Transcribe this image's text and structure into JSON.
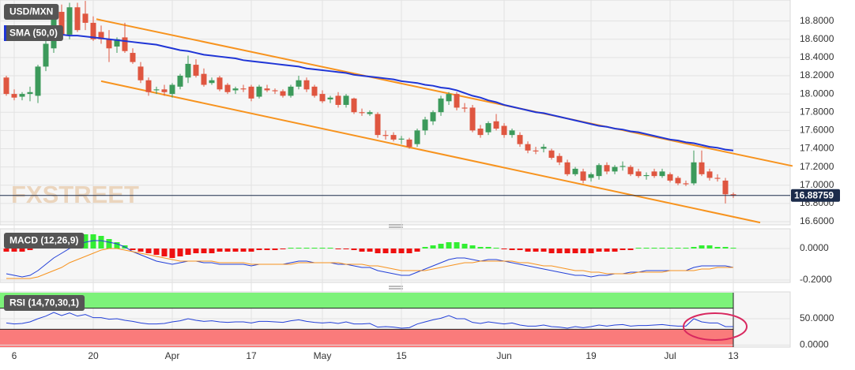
{
  "chart_data": [
    {
      "type": "candlestick",
      "title": "USD/MXN",
      "categories": [
        null,
        "6",
        null,
        null,
        null,
        null,
        null,
        null,
        null,
        null,
        null,
        "20",
        null,
        null,
        null,
        null,
        null,
        null,
        null,
        null,
        null,
        "Apr",
        null,
        null,
        null,
        null,
        null,
        null,
        null,
        null,
        null,
        "17",
        null,
        null,
        null,
        null,
        null,
        null,
        null,
        null,
        "May",
        null,
        null,
        null,
        null,
        null,
        null,
        null,
        null,
        null,
        "15",
        null,
        null,
        null,
        null,
        null,
        null,
        null,
        null,
        null,
        null,
        null,
        null,
        "Jun",
        null,
        null,
        null,
        null,
        null,
        null,
        null,
        null,
        null,
        null,
        "19",
        null,
        null,
        null,
        null,
        null,
        null,
        null,
        null,
        null,
        "Jul",
        null,
        null,
        null,
        null,
        null,
        null,
        null,
        "13"
      ],
      "ohlc": [
        [
          18.18,
          18.2,
          17.98,
          18.0
        ],
        [
          18.0,
          18.05,
          17.93,
          17.96
        ],
        [
          17.97,
          18.02,
          17.93,
          18.0
        ],
        [
          18.0,
          18.08,
          17.92,
          18.02
        ],
        [
          17.98,
          18.32,
          17.9,
          18.3
        ],
        [
          18.3,
          18.6,
          18.25,
          18.55
        ],
        [
          18.5,
          18.95,
          18.45,
          18.9
        ],
        [
          18.9,
          18.98,
          18.6,
          18.65
        ],
        [
          18.65,
          19.0,
          18.6,
          18.95
        ],
        [
          18.95,
          19.0,
          18.68,
          18.7
        ],
        [
          18.88,
          19.02,
          18.7,
          18.78
        ],
        [
          18.78,
          18.85,
          18.58,
          18.6
        ],
        [
          18.68,
          18.75,
          18.55,
          18.6
        ],
        [
          18.6,
          18.7,
          18.35,
          18.5
        ],
        [
          18.52,
          18.62,
          18.45,
          18.6
        ],
        [
          18.62,
          18.78,
          18.45,
          18.47
        ],
        [
          18.45,
          18.5,
          18.33,
          18.35
        ],
        [
          18.3,
          18.35,
          18.12,
          18.15
        ],
        [
          18.15,
          18.18,
          17.98,
          18.02
        ],
        [
          18.04,
          18.08,
          18.0,
          18.05
        ],
        [
          18.05,
          18.1,
          17.98,
          18.02
        ],
        [
          18.0,
          18.12,
          17.96,
          18.1
        ],
        [
          18.08,
          18.22,
          18.05,
          18.2
        ],
        [
          18.18,
          18.42,
          18.12,
          18.33
        ],
        [
          18.32,
          18.38,
          18.18,
          18.2
        ],
        [
          18.22,
          18.28,
          18.08,
          18.1
        ],
        [
          18.12,
          18.18,
          18.1,
          18.15
        ],
        [
          18.18,
          18.2,
          18.03,
          18.05
        ],
        [
          18.1,
          18.12,
          18.0,
          18.02
        ],
        [
          18.04,
          18.08,
          18.0,
          18.06
        ],
        [
          18.06,
          18.1,
          18.02,
          18.05
        ],
        [
          18.08,
          18.1,
          17.92,
          17.95
        ],
        [
          17.97,
          18.1,
          17.95,
          18.08
        ],
        [
          18.06,
          18.1,
          18.02,
          18.04
        ],
        [
          18.04,
          18.06,
          18.0,
          18.03
        ],
        [
          18.03,
          18.05,
          17.96,
          17.98
        ],
        [
          17.98,
          18.1,
          17.96,
          18.08
        ],
        [
          18.08,
          18.2,
          18.05,
          18.15
        ],
        [
          18.15,
          18.18,
          18.02,
          18.05
        ],
        [
          18.08,
          18.1,
          17.96,
          17.98
        ],
        [
          18.0,
          18.04,
          17.9,
          17.92
        ],
        [
          17.94,
          17.98,
          17.9,
          17.96
        ],
        [
          17.98,
          18.02,
          17.85,
          17.88
        ],
        [
          17.88,
          18.0,
          17.85,
          17.98
        ],
        [
          17.95,
          17.96,
          17.78,
          17.8
        ],
        [
          17.8,
          17.84,
          17.76,
          17.79
        ],
        [
          17.78,
          17.82,
          17.76,
          17.8
        ],
        [
          17.78,
          17.8,
          17.52,
          17.55
        ],
        [
          17.55,
          17.6,
          17.5,
          17.54
        ],
        [
          17.55,
          17.58,
          17.48,
          17.5
        ],
        [
          17.5,
          17.54,
          17.45,
          17.51
        ],
        [
          17.5,
          17.52,
          17.4,
          17.42
        ],
        [
          17.45,
          17.62,
          17.42,
          17.6
        ],
        [
          17.6,
          17.75,
          17.55,
          17.72
        ],
        [
          17.7,
          17.82,
          17.66,
          17.8
        ],
        [
          17.8,
          17.98,
          17.76,
          17.95
        ],
        [
          17.92,
          18.02,
          17.88,
          18.0
        ],
        [
          18.0,
          18.02,
          17.82,
          17.85
        ],
        [
          17.85,
          17.9,
          17.8,
          17.84
        ],
        [
          17.85,
          17.88,
          17.58,
          17.6
        ],
        [
          17.62,
          17.66,
          17.52,
          17.55
        ],
        [
          17.58,
          17.7,
          17.55,
          17.68
        ],
        [
          17.7,
          17.78,
          17.6,
          17.62
        ],
        [
          17.65,
          17.68,
          17.52,
          17.55
        ],
        [
          17.55,
          17.62,
          17.52,
          17.6
        ],
        [
          17.55,
          17.58,
          17.42,
          17.45
        ],
        [
          17.45,
          17.48,
          17.35,
          17.38
        ],
        [
          17.38,
          17.42,
          17.34,
          17.37
        ],
        [
          17.4,
          17.45,
          17.36,
          17.42
        ],
        [
          17.38,
          17.4,
          17.28,
          17.3
        ],
        [
          17.32,
          17.35,
          17.22,
          17.25
        ],
        [
          17.25,
          17.28,
          17.1,
          17.12
        ],
        [
          17.12,
          17.2,
          17.1,
          17.18
        ],
        [
          17.15,
          17.18,
          17.02,
          17.05
        ],
        [
          17.08,
          17.14,
          17.04,
          17.12
        ],
        [
          17.1,
          17.24,
          17.06,
          17.22
        ],
        [
          17.22,
          17.25,
          17.12,
          17.15
        ],
        [
          17.15,
          17.22,
          17.12,
          17.2
        ],
        [
          17.2,
          17.26,
          17.16,
          17.21
        ],
        [
          17.2,
          17.22,
          17.1,
          17.12
        ],
        [
          17.15,
          17.18,
          17.08,
          17.1
        ],
        [
          17.1,
          17.14,
          17.06,
          17.11
        ],
        [
          17.15,
          17.18,
          17.08,
          17.1
        ],
        [
          17.1,
          17.18,
          17.08,
          17.15
        ],
        [
          17.12,
          17.14,
          17.03,
          17.05
        ],
        [
          17.08,
          17.1,
          17.0,
          17.02
        ],
        [
          17.02,
          17.05,
          16.99,
          17.01
        ],
        [
          17.02,
          17.38,
          17.0,
          17.25
        ],
        [
          17.25,
          17.38,
          17.1,
          17.12
        ],
        [
          17.15,
          17.18,
          17.05,
          17.08
        ],
        [
          17.08,
          17.12,
          17.04,
          17.07
        ],
        [
          17.05,
          17.08,
          16.8,
          16.9
        ],
        [
          16.9,
          16.92,
          16.86,
          16.89
        ]
      ],
      "up_color": "#3c9a5b",
      "down_color": "#df5640",
      "series": [
        {
          "name": "SMA (50,0)",
          "color": "#1f35d6",
          "values": [
            18.67,
            18.67,
            18.67,
            18.66,
            18.66,
            18.66,
            18.65,
            18.65,
            18.64,
            18.64,
            18.63,
            18.62,
            18.61,
            18.6,
            18.59,
            18.58,
            18.57,
            18.56,
            18.55,
            18.54,
            18.52,
            18.5,
            18.48,
            18.47,
            18.45,
            18.43,
            18.42,
            18.41,
            18.4,
            18.39,
            18.37,
            18.36,
            18.35,
            18.34,
            18.33,
            18.32,
            18.31,
            18.3,
            18.28,
            18.27,
            18.26,
            18.25,
            18.24,
            18.23,
            18.21,
            18.2,
            18.19,
            18.18,
            18.17,
            18.16,
            18.14,
            18.13,
            18.12,
            18.1,
            18.09,
            18.07,
            18.06,
            18.04,
            18.01,
            17.98,
            17.96,
            17.93,
            17.91,
            17.88,
            17.86,
            17.84,
            17.82,
            17.8,
            17.79,
            17.77,
            17.75,
            17.73,
            17.71,
            17.69,
            17.67,
            17.65,
            17.64,
            17.62,
            17.61,
            17.59,
            17.58,
            17.56,
            17.54,
            17.52,
            17.5,
            17.49,
            17.47,
            17.46,
            17.44,
            17.42,
            17.41,
            17.39,
            17.38
          ]
        }
      ],
      "channel": {
        "color": "#f7931e",
        "lines": [
          [
            18.82,
            17.21
          ],
          [
            18.14,
            16.59
          ]
        ]
      },
      "last_price": 16.88759,
      "last_price_color": "#1b2b4b",
      "watermark": "FXSTREET",
      "ylim": [
        16.565,
        19.03
      ],
      "yticks": [
        {
          "value": 16.6,
          "label": "16.6000"
        },
        {
          "value": 16.8,
          "label": "16.8000"
        },
        {
          "value": 17.0,
          "label": "17.0000"
        },
        {
          "value": 17.2,
          "label": "17.2000"
        },
        {
          "value": 17.4,
          "label": "17.4000"
        },
        {
          "value": 17.6,
          "label": "17.6000"
        },
        {
          "value": 17.8,
          "label": "17.8000"
        },
        {
          "value": 18.0,
          "label": "18.0000"
        },
        {
          "value": 18.2,
          "label": "18.2000"
        },
        {
          "value": 18.4,
          "label": "18.4000"
        },
        {
          "value": 18.6,
          "label": "18.6000"
        },
        {
          "value": 18.8,
          "label": "18.8000"
        }
      ],
      "grid": true
    },
    {
      "type": "macd",
      "title": "MACD (12,26,9)",
      "histogram": [
        -0.02,
        -0.02,
        -0.02,
        -0.01,
        0.02,
        0.04,
        0.06,
        0.07,
        0.08,
        0.09,
        0.09,
        0.09,
        0.08,
        0.06,
        0.04,
        0.02,
        -0.01,
        -0.02,
        -0.03,
        -0.04,
        -0.05,
        -0.06,
        -0.05,
        -0.04,
        -0.03,
        -0.03,
        -0.03,
        -0.02,
        -0.02,
        -0.02,
        -0.02,
        -0.02,
        -0.01,
        -0.01,
        -0.01,
        -0.005,
        0.005,
        0.005,
        0.005,
        0.005,
        0.005,
        0.005,
        -0.005,
        -0.005,
        -0.01,
        -0.02,
        -0.02,
        -0.03,
        -0.03,
        -0.03,
        -0.03,
        -0.03,
        -0.02,
        0.01,
        0.02,
        0.03,
        0.04,
        0.04,
        0.03,
        0.02,
        0.01,
        0.01,
        0.005,
        -0.005,
        -0.01,
        -0.01,
        -0.02,
        -0.02,
        -0.02,
        -0.03,
        -0.03,
        -0.03,
        -0.03,
        -0.03,
        -0.03,
        -0.02,
        -0.02,
        -0.02,
        -0.01,
        -0.01,
        0.005,
        0.005,
        0.005,
        0.005,
        0.005,
        0.005,
        0.005,
        0.01,
        0.02,
        0.02,
        0.01,
        0.01,
        0.005
      ],
      "macd": [
        -0.16,
        -0.17,
        -0.18,
        -0.17,
        -0.14,
        -0.1,
        -0.06,
        -0.03,
        0.0,
        0.02,
        0.04,
        0.05,
        0.05,
        0.04,
        0.03,
        0.01,
        -0.02,
        -0.04,
        -0.06,
        -0.08,
        -0.09,
        -0.1,
        -0.09,
        -0.08,
        -0.08,
        -0.09,
        -0.09,
        -0.1,
        -0.1,
        -0.1,
        -0.1,
        -0.11,
        -0.1,
        -0.1,
        -0.1,
        -0.1,
        -0.09,
        -0.08,
        -0.08,
        -0.09,
        -0.09,
        -0.09,
        -0.1,
        -0.1,
        -0.11,
        -0.12,
        -0.12,
        -0.14,
        -0.15,
        -0.16,
        -0.17,
        -0.17,
        -0.15,
        -0.13,
        -0.11,
        -0.09,
        -0.07,
        -0.06,
        -0.06,
        -0.07,
        -0.08,
        -0.07,
        -0.07,
        -0.08,
        -0.09,
        -0.1,
        -0.11,
        -0.12,
        -0.13,
        -0.14,
        -0.15,
        -0.16,
        -0.17,
        -0.17,
        -0.18,
        -0.17,
        -0.17,
        -0.16,
        -0.16,
        -0.15,
        -0.15,
        -0.14,
        -0.14,
        -0.14,
        -0.14,
        -0.14,
        -0.14,
        -0.12,
        -0.11,
        -0.11,
        -0.11,
        -0.11,
        -0.12
      ],
      "signal": [
        -0.19,
        -0.19,
        -0.19,
        -0.19,
        -0.18,
        -0.16,
        -0.14,
        -0.12,
        -0.09,
        -0.07,
        -0.05,
        -0.03,
        -0.01,
        0.0,
        0.0,
        -0.01,
        -0.02,
        -0.03,
        -0.04,
        -0.05,
        -0.06,
        -0.07,
        -0.08,
        -0.08,
        -0.08,
        -0.08,
        -0.08,
        -0.09,
        -0.09,
        -0.09,
        -0.09,
        -0.1,
        -0.1,
        -0.1,
        -0.1,
        -0.1,
        -0.1,
        -0.09,
        -0.09,
        -0.09,
        -0.09,
        -0.09,
        -0.09,
        -0.1,
        -0.1,
        -0.1,
        -0.11,
        -0.11,
        -0.12,
        -0.13,
        -0.14,
        -0.14,
        -0.14,
        -0.14,
        -0.13,
        -0.12,
        -0.11,
        -0.1,
        -0.09,
        -0.09,
        -0.08,
        -0.08,
        -0.08,
        -0.08,
        -0.08,
        -0.09,
        -0.09,
        -0.1,
        -0.11,
        -0.11,
        -0.12,
        -0.13,
        -0.14,
        -0.14,
        -0.15,
        -0.15,
        -0.16,
        -0.16,
        -0.16,
        -0.16,
        -0.15,
        -0.15,
        -0.15,
        -0.15,
        -0.14,
        -0.14,
        -0.14,
        -0.14,
        -0.13,
        -0.13,
        -0.12,
        -0.12,
        -0.12
      ],
      "up_color": "#33ee33",
      "down_color": "#ee1111",
      "macd_color": "#2340d8",
      "signal_color": "#f7931e",
      "ylim": [
        -0.215,
        0.125
      ],
      "yticks": [
        {
          "value": 0,
          "label": "0.0000"
        },
        {
          "value": -0.2,
          "label": "-0.2000"
        }
      ]
    },
    {
      "type": "rsi",
      "title": "RSI (14,70,30,1)",
      "values": [
        42,
        40,
        41,
        44,
        50,
        55,
        62,
        56,
        61,
        55,
        58,
        52,
        52,
        49,
        50,
        47,
        45,
        42,
        40,
        40,
        41,
        44,
        46,
        50,
        47,
        45,
        46,
        44,
        43,
        44,
        44,
        42,
        45,
        45,
        44,
        43,
        46,
        48,
        45,
        43,
        42,
        43,
        41,
        44,
        40,
        40,
        41,
        34,
        35,
        34,
        32,
        33,
        40,
        44,
        48,
        51,
        56,
        50,
        50,
        43,
        41,
        44,
        42,
        40,
        42,
        38,
        36,
        36,
        38,
        35,
        34,
        32,
        35,
        33,
        35,
        38,
        36,
        38,
        39,
        36,
        37,
        37,
        38,
        39,
        37,
        36,
        36,
        50,
        44,
        42,
        42,
        35,
        35
      ],
      "color": "#2340d8",
      "overbought": 70,
      "oversold": 30,
      "overbought_color": "#7df27a",
      "oversold_color": "#fa7b7b",
      "ylim": [
        -4,
        101
      ],
      "yticks": [
        {
          "value": 0,
          "label": "0.0000"
        },
        {
          "value": 50,
          "label": "50.0000"
        }
      ]
    }
  ]
}
